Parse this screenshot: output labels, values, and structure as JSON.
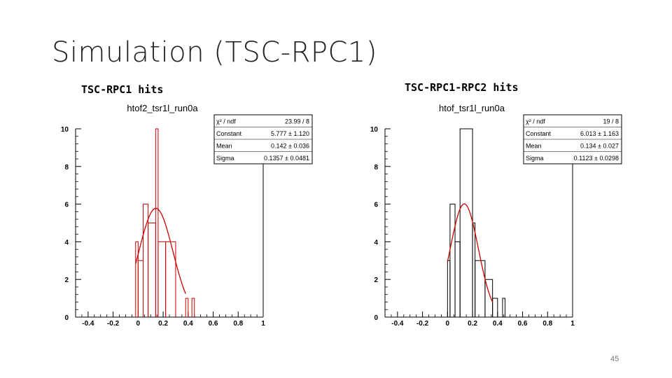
{
  "slide": {
    "title": "Simulation (TSC-RPC1)",
    "page_number": "45"
  },
  "chart_data": [
    {
      "type": "bar",
      "caption": "TSC-RPC1 hits",
      "title": "htof2_tsr1l_run0a",
      "histogram_style": "step",
      "xlim": [
        -0.5,
        1.0
      ],
      "ylim": [
        0,
        10
      ],
      "x_ticks": [
        "-0.4",
        "-0.2",
        "0",
        "0.2",
        "0.4",
        "0.6",
        "0.8",
        "1"
      ],
      "y_ticks": [
        "0",
        "2",
        "4",
        "6",
        "8",
        "10"
      ],
      "bins": [
        {
          "x0": -0.02,
          "x1": 0.0,
          "value": 4
        },
        {
          "x0": 0.0,
          "x1": 0.04,
          "value": 3
        },
        {
          "x0": 0.04,
          "x1": 0.08,
          "value": 6
        },
        {
          "x0": 0.08,
          "x1": 0.14,
          "value": 5
        },
        {
          "x0": 0.14,
          "x1": 0.16,
          "value": 10
        },
        {
          "x0": 0.16,
          "x1": 0.22,
          "value": 4
        },
        {
          "x0": 0.22,
          "x1": 0.3,
          "value": 4
        },
        {
          "x0": 0.38,
          "x1": 0.4,
          "value": 1
        },
        {
          "x0": 0.43,
          "x1": 0.45,
          "value": 1
        }
      ],
      "fit_curve": {
        "color": "#cc0000",
        "constant": 5.777,
        "mean": 0.142,
        "sigma": 0.1357,
        "x_range": [
          -0.02,
          0.38
        ]
      },
      "stats": [
        {
          "label": "χ² / ndf",
          "value": "23.99 / 8"
        },
        {
          "label": "Constant",
          "value": "5.777 ± 1.120"
        },
        {
          "label": "Mean",
          "value": "0.142 ± 0.036"
        },
        {
          "label": "Sigma",
          "value": "0.1357 ± 0.0481"
        }
      ],
      "colors": {
        "histogram": "#cc0000",
        "axis": "#000000"
      }
    },
    {
      "type": "bar",
      "caption": "TSC-RPC1-RPC2 hits",
      "title": "htof_tsr1l_run0a",
      "histogram_style": "step",
      "xlim": [
        -0.5,
        1.0
      ],
      "ylim": [
        0,
        10
      ],
      "x_ticks": [
        "-0.4",
        "-0.2",
        "0",
        "0.2",
        "0.4",
        "0.6",
        "0.8",
        "1"
      ],
      "y_ticks": [
        "0",
        "2",
        "4",
        "6",
        "8",
        "10"
      ],
      "bins": [
        {
          "x0": 0.0,
          "x1": 0.02,
          "value": 3
        },
        {
          "x0": 0.02,
          "x1": 0.06,
          "value": 6
        },
        {
          "x0": 0.06,
          "x1": 0.1,
          "value": 4
        },
        {
          "x0": 0.1,
          "x1": 0.2,
          "value": 10
        },
        {
          "x0": 0.2,
          "x1": 0.22,
          "value": 5
        },
        {
          "x0": 0.22,
          "x1": 0.3,
          "value": 3
        },
        {
          "x0": 0.3,
          "x1": 0.36,
          "value": 2
        },
        {
          "x0": 0.36,
          "x1": 0.4,
          "value": 1
        },
        {
          "x0": 0.44,
          "x1": 0.46,
          "value": 1
        }
      ],
      "fit_curve": {
        "color": "#cc0000",
        "constant": 6.013,
        "mean": 0.134,
        "sigma": 0.1123,
        "x_range": [
          0.0,
          0.36
        ]
      },
      "stats": [
        {
          "label": "χ² / ndf",
          "value": "19 / 8"
        },
        {
          "label": "Constant",
          "value": "6.013 ± 1.163"
        },
        {
          "label": "Mean",
          "value": "0.134 ± 0.027"
        },
        {
          "label": "Sigma",
          "value": "0.1123 ± 0.0298"
        }
      ],
      "colors": {
        "histogram": "#000000",
        "axis": "#000000"
      }
    }
  ]
}
